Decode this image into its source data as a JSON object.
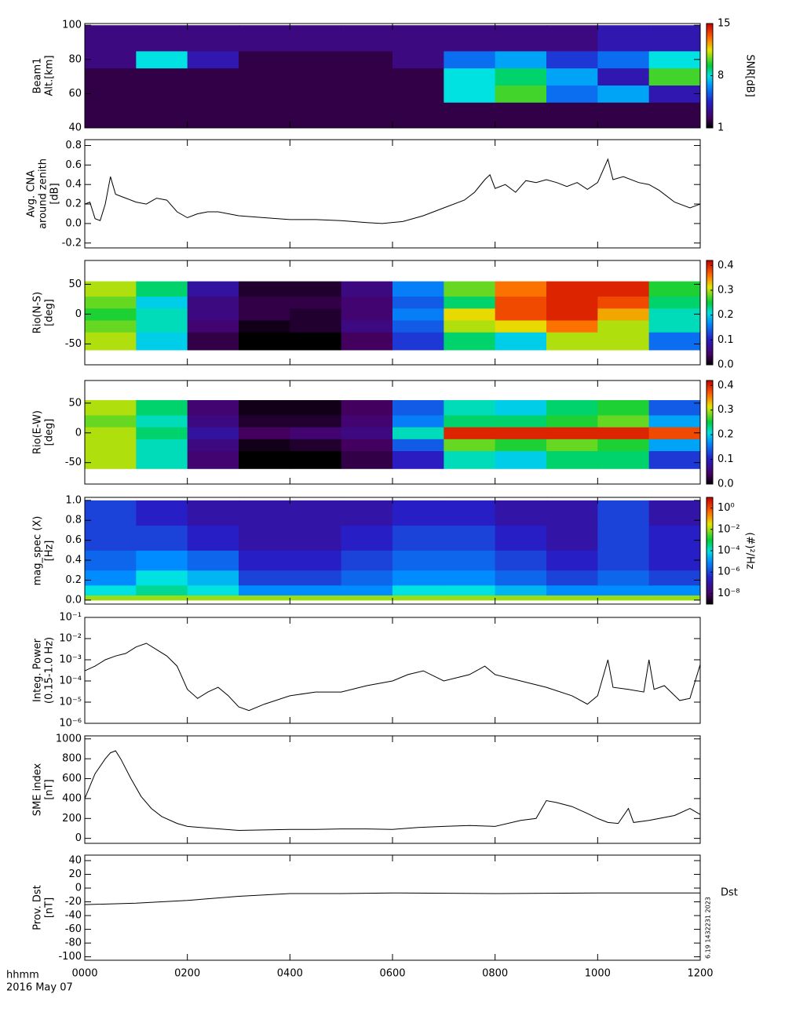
{
  "xaxis": {
    "xlim": [
      0,
      12
    ],
    "xticks": [
      {
        "value": 0,
        "label": "0000"
      },
      {
        "value": 2,
        "label": "0200"
      },
      {
        "value": 4,
        "label": "0400"
      },
      {
        "value": 6,
        "label": "0600"
      },
      {
        "value": 8,
        "label": "0800"
      },
      {
        "value": 10,
        "label": "1000"
      },
      {
        "value": 12,
        "label": "1200"
      }
    ],
    "label": "hhmm",
    "date": "2016 May 07",
    "note": "6.19 1432231 2023"
  },
  "chart_data": [
    {
      "type": "heatmap",
      "ylabel": [
        "Beam1",
        "Alt.[km]"
      ],
      "ylim": [
        40,
        101
      ],
      "yticks": [
        40,
        60,
        80,
        100
      ],
      "colormap": "rainbow",
      "zlim": [
        1,
        15
      ],
      "zticks": [
        1,
        8,
        15
      ],
      "zlabel": "SNR[dB]",
      "x": [
        0,
        1,
        2,
        3,
        4,
        5,
        6,
        7,
        8,
        9,
        10,
        11,
        12
      ],
      "y": [
        40,
        55,
        65,
        75,
        85,
        100
      ],
      "z": [
        [
          2,
          2,
          2,
          2,
          2,
          2,
          2,
          2,
          2,
          2,
          2,
          2
        ],
        [
          2,
          2,
          2,
          2,
          2,
          2,
          2,
          8,
          10,
          6,
          7,
          4
        ],
        [
          2,
          2,
          2,
          2,
          2,
          2,
          2,
          8,
          9,
          7,
          4,
          10
        ],
        [
          3,
          8,
          4,
          2,
          2,
          2,
          3,
          6,
          7,
          5,
          6,
          8
        ],
        [
          3,
          3,
          3,
          3,
          3,
          3,
          3,
          3,
          3,
          3,
          4,
          4
        ]
      ]
    },
    {
      "type": "line",
      "ylabel": [
        "Avg. CNA",
        "around zenith",
        "[dB]"
      ],
      "ylim": [
        -0.25,
        0.86
      ],
      "yticks": [
        -0.2,
        {
          "value": 0,
          "label": "0.0"
        },
        0.2,
        0.4,
        0.6,
        0.8
      ],
      "color": "#000000",
      "series": [
        {
          "x": [
            0,
            0.1,
            0.2,
            0.3,
            0.4,
            0.5,
            0.6,
            0.8,
            1.0,
            1.2,
            1.4,
            1.6,
            1.8,
            2.0,
            2.2,
            2.4,
            2.6,
            3.0,
            3.5,
            4.0,
            4.5,
            5.0,
            5.5,
            5.8,
            6.2,
            6.6,
            7.0,
            7.4,
            7.6,
            7.8,
            7.9,
            8.0,
            8.2,
            8.4,
            8.6,
            8.8,
            9.0,
            9.2,
            9.4,
            9.6,
            9.8,
            10.0,
            10.2,
            10.3,
            10.5,
            10.8,
            11.0,
            11.2,
            11.5,
            11.8,
            12.0
          ],
          "values": [
            0.2,
            0.22,
            0.05,
            0.03,
            0.2,
            0.48,
            0.3,
            0.26,
            0.22,
            0.2,
            0.26,
            0.24,
            0.12,
            0.06,
            0.1,
            0.12,
            0.12,
            0.08,
            0.06,
            0.04,
            0.04,
            0.03,
            0.01,
            0.0,
            0.02,
            0.08,
            0.16,
            0.24,
            0.32,
            0.45,
            0.5,
            0.36,
            0.4,
            0.32,
            0.44,
            0.42,
            0.45,
            0.42,
            0.38,
            0.42,
            0.35,
            0.42,
            0.66,
            0.45,
            0.48,
            0.42,
            0.4,
            0.34,
            0.22,
            0.16,
            0.2
          ]
        }
      ]
    },
    {
      "type": "heatmap",
      "ylabel": [
        "Rio(N-S)",
        "[deg]"
      ],
      "ylim": [
        -85,
        90
      ],
      "yticks": [
        -50,
        0,
        50
      ],
      "colormap": "rainbow",
      "zlim": [
        0,
        0.42
      ],
      "zticks": [
        {
          "value": 0,
          "label": "0.0"
        },
        0.1,
        0.2,
        0.3,
        0.4
      ],
      "x": [
        0,
        1,
        2,
        3,
        4,
        5,
        6,
        7,
        8,
        9,
        10,
        11,
        12
      ],
      "y": [
        -60,
        -30,
        -10,
        10,
        30,
        55
      ],
      "z": [
        [
          0.3,
          0.2,
          0.03,
          0.0,
          0.0,
          0.04,
          0.12,
          0.24,
          0.2,
          0.3,
          0.3,
          0.15
        ],
        [
          0.28,
          0.22,
          0.05,
          0.01,
          0.02,
          0.06,
          0.14,
          0.3,
          0.32,
          0.36,
          0.3,
          0.22
        ],
        [
          0.26,
          0.22,
          0.06,
          0.03,
          0.02,
          0.05,
          0.16,
          0.32,
          0.38,
          0.4,
          0.34,
          0.22
        ],
        [
          0.28,
          0.2,
          0.06,
          0.03,
          0.03,
          0.05,
          0.14,
          0.24,
          0.38,
          0.4,
          0.38,
          0.24
        ],
        [
          0.3,
          0.24,
          0.08,
          0.02,
          0.02,
          0.06,
          0.16,
          0.28,
          0.36,
          0.4,
          0.4,
          0.26
        ]
      ]
    },
    {
      "type": "heatmap",
      "ylabel": [
        "Rio(E-W)",
        "[deg]"
      ],
      "ylim": [
        -86,
        88
      ],
      "yticks": [
        -50,
        0,
        50
      ],
      "colormap": "rainbow",
      "zlim": [
        0,
        0.42
      ],
      "zticks": [
        {
          "value": 0,
          "label": "0.0"
        },
        0.1,
        0.2,
        0.3,
        0.4
      ],
      "x": [
        0,
        1,
        2,
        3,
        4,
        5,
        6,
        7,
        8,
        9,
        10,
        11,
        12
      ],
      "y": [
        -60,
        -30,
        -10,
        10,
        30,
        55
      ],
      "z": [
        [
          0.3,
          0.22,
          0.05,
          0.0,
          0.0,
          0.03,
          0.1,
          0.22,
          0.2,
          0.24,
          0.24,
          0.12
        ],
        [
          0.3,
          0.22,
          0.06,
          0.01,
          0.02,
          0.04,
          0.14,
          0.28,
          0.26,
          0.28,
          0.26,
          0.18
        ],
        [
          0.3,
          0.24,
          0.08,
          0.04,
          0.05,
          0.06,
          0.22,
          0.4,
          0.4,
          0.4,
          0.4,
          0.38
        ],
        [
          0.28,
          0.22,
          0.06,
          0.02,
          0.02,
          0.05,
          0.16,
          0.24,
          0.24,
          0.26,
          0.28,
          0.18
        ],
        [
          0.3,
          0.24,
          0.05,
          0.01,
          0.01,
          0.04,
          0.14,
          0.22,
          0.2,
          0.24,
          0.26,
          0.14
        ]
      ]
    },
    {
      "type": "heatmap",
      "ylabel": [
        "mag_spec (X)",
        "[Hz]"
      ],
      "ylim": [
        -0.04,
        1.03
      ],
      "yticks": [
        {
          "value": 0,
          "label": "0.0"
        },
        0.2,
        0.4,
        0.6,
        0.8,
        {
          "value": 1,
          "label": "1.0"
        }
      ],
      "colormap": "rainbow",
      "zlog": true,
      "zlim": [
        1e-09,
        10.0
      ],
      "zlabel": "(#)²/Hz",
      "zticks": [
        {
          "value": 1e-08,
          "label": "10⁻⁸"
        },
        {
          "value": 1e-06,
          "label": "10⁻⁶"
        },
        {
          "value": 0.0001,
          "label": "10⁻⁴"
        },
        {
          "value": 0.01,
          "label": "10⁻²"
        },
        {
          "value": 1,
          "label": "10⁰"
        }
      ],
      "x": [
        0,
        1,
        2,
        3,
        4,
        5,
        6,
        7,
        8,
        9,
        10,
        11,
        12
      ],
      "y": [
        0,
        0.05,
        0.15,
        0.3,
        0.5,
        0.75,
        1.0
      ],
      "z": [
        [
          0.01,
          0.01,
          0.01,
          0.01,
          0.01,
          0.01,
          0.01,
          0.01,
          0.01,
          0.01,
          0.01,
          0.01
        ],
        [
          0.0001,
          0.0003,
          0.0001,
          1e-05,
          1e-05,
          1e-05,
          0.0001,
          0.0001,
          3e-05,
          1e-05,
          1e-05,
          1e-05
        ],
        [
          1e-05,
          0.0001,
          3e-05,
          1e-06,
          1e-06,
          3e-06,
          1e-05,
          1e-05,
          3e-06,
          1e-06,
          3e-06,
          1e-06
        ],
        [
          3e-06,
          1e-05,
          3e-06,
          3e-07,
          3e-07,
          1e-06,
          3e-06,
          3e-06,
          1e-06,
          3e-07,
          1e-06,
          3e-07
        ],
        [
          1e-06,
          1e-06,
          3e-07,
          1e-07,
          1e-07,
          3e-07,
          1e-06,
          1e-06,
          3e-07,
          1e-07,
          1e-06,
          3e-07
        ],
        [
          1e-06,
          3e-07,
          1e-07,
          1e-07,
          1e-07,
          1e-07,
          3e-07,
          3e-07,
          1e-07,
          1e-07,
          1e-06,
          1e-07
        ]
      ]
    },
    {
      "type": "line",
      "ylabel": [
        "Integ. Power",
        "(0.15-1.0 Hz)"
      ],
      "ylog": true,
      "ylim": [
        1e-06,
        0.1
      ],
      "yticks": [
        {
          "value": 1e-06,
          "label": "10⁻⁶"
        },
        {
          "value": 1e-05,
          "label": "10⁻⁵"
        },
        {
          "value": 0.0001,
          "label": "10⁻⁴"
        },
        {
          "value": 0.001,
          "label": "10⁻³"
        },
        {
          "value": 0.01,
          "label": "10⁻²"
        },
        {
          "value": 0.1,
          "label": "10⁻¹"
        }
      ],
      "color": "#000000",
      "series": [
        {
          "x": [
            0,
            0.2,
            0.4,
            0.6,
            0.8,
            1.0,
            1.2,
            1.4,
            1.6,
            1.8,
            2.0,
            2.2,
            2.4,
            2.6,
            2.8,
            3.0,
            3.2,
            3.5,
            4.0,
            4.5,
            5.0,
            5.5,
            6.0,
            6.3,
            6.6,
            7.0,
            7.5,
            7.8,
            8.0,
            8.5,
            9.0,
            9.5,
            9.8,
            10.0,
            10.2,
            10.3,
            10.6,
            10.9,
            11.0,
            11.1,
            11.3,
            11.6,
            11.8,
            12.0
          ],
          "values": [
            0.0003,
            0.0005,
            0.001,
            0.0015,
            0.002,
            0.004,
            0.006,
            0.003,
            0.0015,
            0.0005,
            4e-05,
            1.5e-05,
            3e-05,
            5e-05,
            2e-05,
            6e-06,
            4e-06,
            8e-06,
            2e-05,
            3e-05,
            3e-05,
            6e-05,
            0.0001,
            0.0002,
            0.0003,
            0.0001,
            0.0002,
            0.0005,
            0.0002,
            0.0001,
            5e-05,
            2e-05,
            8e-06,
            2e-05,
            0.001,
            5e-05,
            4e-05,
            3e-05,
            0.001,
            4e-05,
            6e-05,
            1.2e-05,
            1.5e-05,
            0.0006
          ]
        }
      ]
    },
    {
      "type": "line",
      "ylabel": [
        "SME index",
        "[nT]"
      ],
      "ylim": [
        -50,
        1030
      ],
      "yticks": [
        0,
        200,
        400,
        600,
        800,
        1000
      ],
      "color": "#000000",
      "series": [
        {
          "x": [
            0,
            0.2,
            0.4,
            0.5,
            0.6,
            0.7,
            0.9,
            1.1,
            1.3,
            1.5,
            1.8,
            2.0,
            2.5,
            3.0,
            3.5,
            4.0,
            4.5,
            5.0,
            5.5,
            6.0,
            6.5,
            7.0,
            7.5,
            8.0,
            8.5,
            8.8,
            9.0,
            9.2,
            9.5,
            9.8,
            10.0,
            10.2,
            10.4,
            10.6,
            10.7,
            11.0,
            11.5,
            11.8,
            12.0
          ],
          "values": [
            400,
            650,
            800,
            860,
            880,
            800,
            600,
            420,
            300,
            220,
            150,
            120,
            100,
            80,
            85,
            90,
            90,
            95,
            95,
            90,
            110,
            120,
            130,
            120,
            180,
            200,
            380,
            360,
            320,
            250,
            200,
            160,
            150,
            300,
            160,
            180,
            230,
            300,
            240
          ]
        }
      ]
    },
    {
      "type": "line",
      "ylabel": [
        "Prov. Dst",
        "[nT]"
      ],
      "ylim": [
        -105,
        48
      ],
      "yticks": [
        -100,
        -80,
        -60,
        -40,
        -20,
        0,
        20,
        40
      ],
      "color": "#000000",
      "series": [
        {
          "name": "Dst",
          "x": [
            0,
            1,
            2,
            3,
            4,
            5,
            6,
            8,
            10,
            12
          ],
          "values": [
            -24,
            -22,
            -18,
            -12,
            -8,
            -8,
            -7,
            -8,
            -7,
            -7
          ]
        }
      ]
    }
  ]
}
